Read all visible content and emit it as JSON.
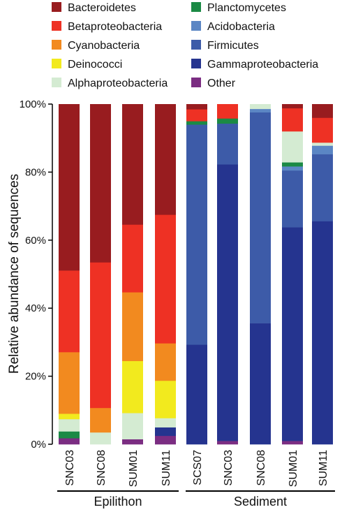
{
  "chart_data": {
    "type": "bar",
    "stacked": true,
    "ylabel": "Relative abundance of sequences",
    "ylim": [
      0,
      100
    ],
    "yticks": [
      0,
      20,
      40,
      60,
      80,
      100
    ],
    "ytick_labels": [
      "0%",
      "20%",
      "40%",
      "60%",
      "80%",
      "100%"
    ],
    "categories": [
      "SNC03",
      "SNC08",
      "SUM01",
      "SUM11",
      "SCS07",
      "SNC03",
      "SNC08",
      "SUM01",
      "SUM11"
    ],
    "groups": [
      {
        "label": "Epilithon",
        "categories": [
          0,
          1,
          2,
          3
        ]
      },
      {
        "label": "Sediment",
        "categories": [
          4,
          5,
          6,
          7,
          8
        ]
      }
    ],
    "legend_placement": "top",
    "series": [
      {
        "name": "Other",
        "color": "#7b2d82",
        "values": [
          1.8,
          0,
          1.5,
          2.5,
          0,
          1.0,
          0,
          1.0,
          0
        ]
      },
      {
        "name": "Gammaproteobacteria",
        "color": "#25348f",
        "values": [
          0,
          0,
          0,
          2.5,
          29.3,
          81.3,
          35.6,
          62.8,
          65.6
        ]
      },
      {
        "name": "Firmicutes",
        "color": "#3d5ba8",
        "values": [
          0,
          0,
          0,
          0,
          64.7,
          12.0,
          62.0,
          16.7,
          19.7
        ]
      },
      {
        "name": "Acidobacteria",
        "color": "#5b86c4",
        "values": [
          0,
          0,
          0,
          0,
          0,
          0,
          1.0,
          1.2,
          2.5
        ]
      },
      {
        "name": "Planctomycetes",
        "color": "#1b8a45",
        "values": [
          2.0,
          0,
          0,
          0,
          1.0,
          1.5,
          0,
          1.2,
          0
        ]
      },
      {
        "name": "Alphaproteobacteria",
        "color": "#d4ebd2",
        "values": [
          3.6,
          3.5,
          7.7,
          2.7,
          0,
          0,
          1.4,
          9.1,
          0.9
        ]
      },
      {
        "name": "Deinococci",
        "color": "#f2ea1e",
        "values": [
          1.6,
          0,
          15.3,
          11.0,
          0,
          0,
          0,
          0,
          0
        ]
      },
      {
        "name": "Cyanobacteria",
        "color": "#f28a1f",
        "values": [
          18.1,
          7.2,
          20.2,
          11.0,
          0,
          0,
          0,
          0,
          0
        ]
      },
      {
        "name": "Betaproteobacteria",
        "color": "#ee3124",
        "values": [
          24.0,
          42.8,
          19.9,
          37.8,
          3.5,
          4.2,
          0,
          6.8,
          7.3
        ]
      },
      {
        "name": "Bacteroidetes",
        "color": "#981c1f",
        "values": [
          48.9,
          46.5,
          35.4,
          32.5,
          1.5,
          0,
          0,
          1.2,
          4.0
        ]
      }
    ],
    "legend_order": [
      "Bacteroidetes",
      "Betaproteobacteria",
      "Cyanobacteria",
      "Deinococci",
      "Alphaproteobacteria",
      "Planctomycetes",
      "Acidobacteria",
      "Firmicutes",
      "Gammaproteobacteria",
      "Other"
    ]
  }
}
